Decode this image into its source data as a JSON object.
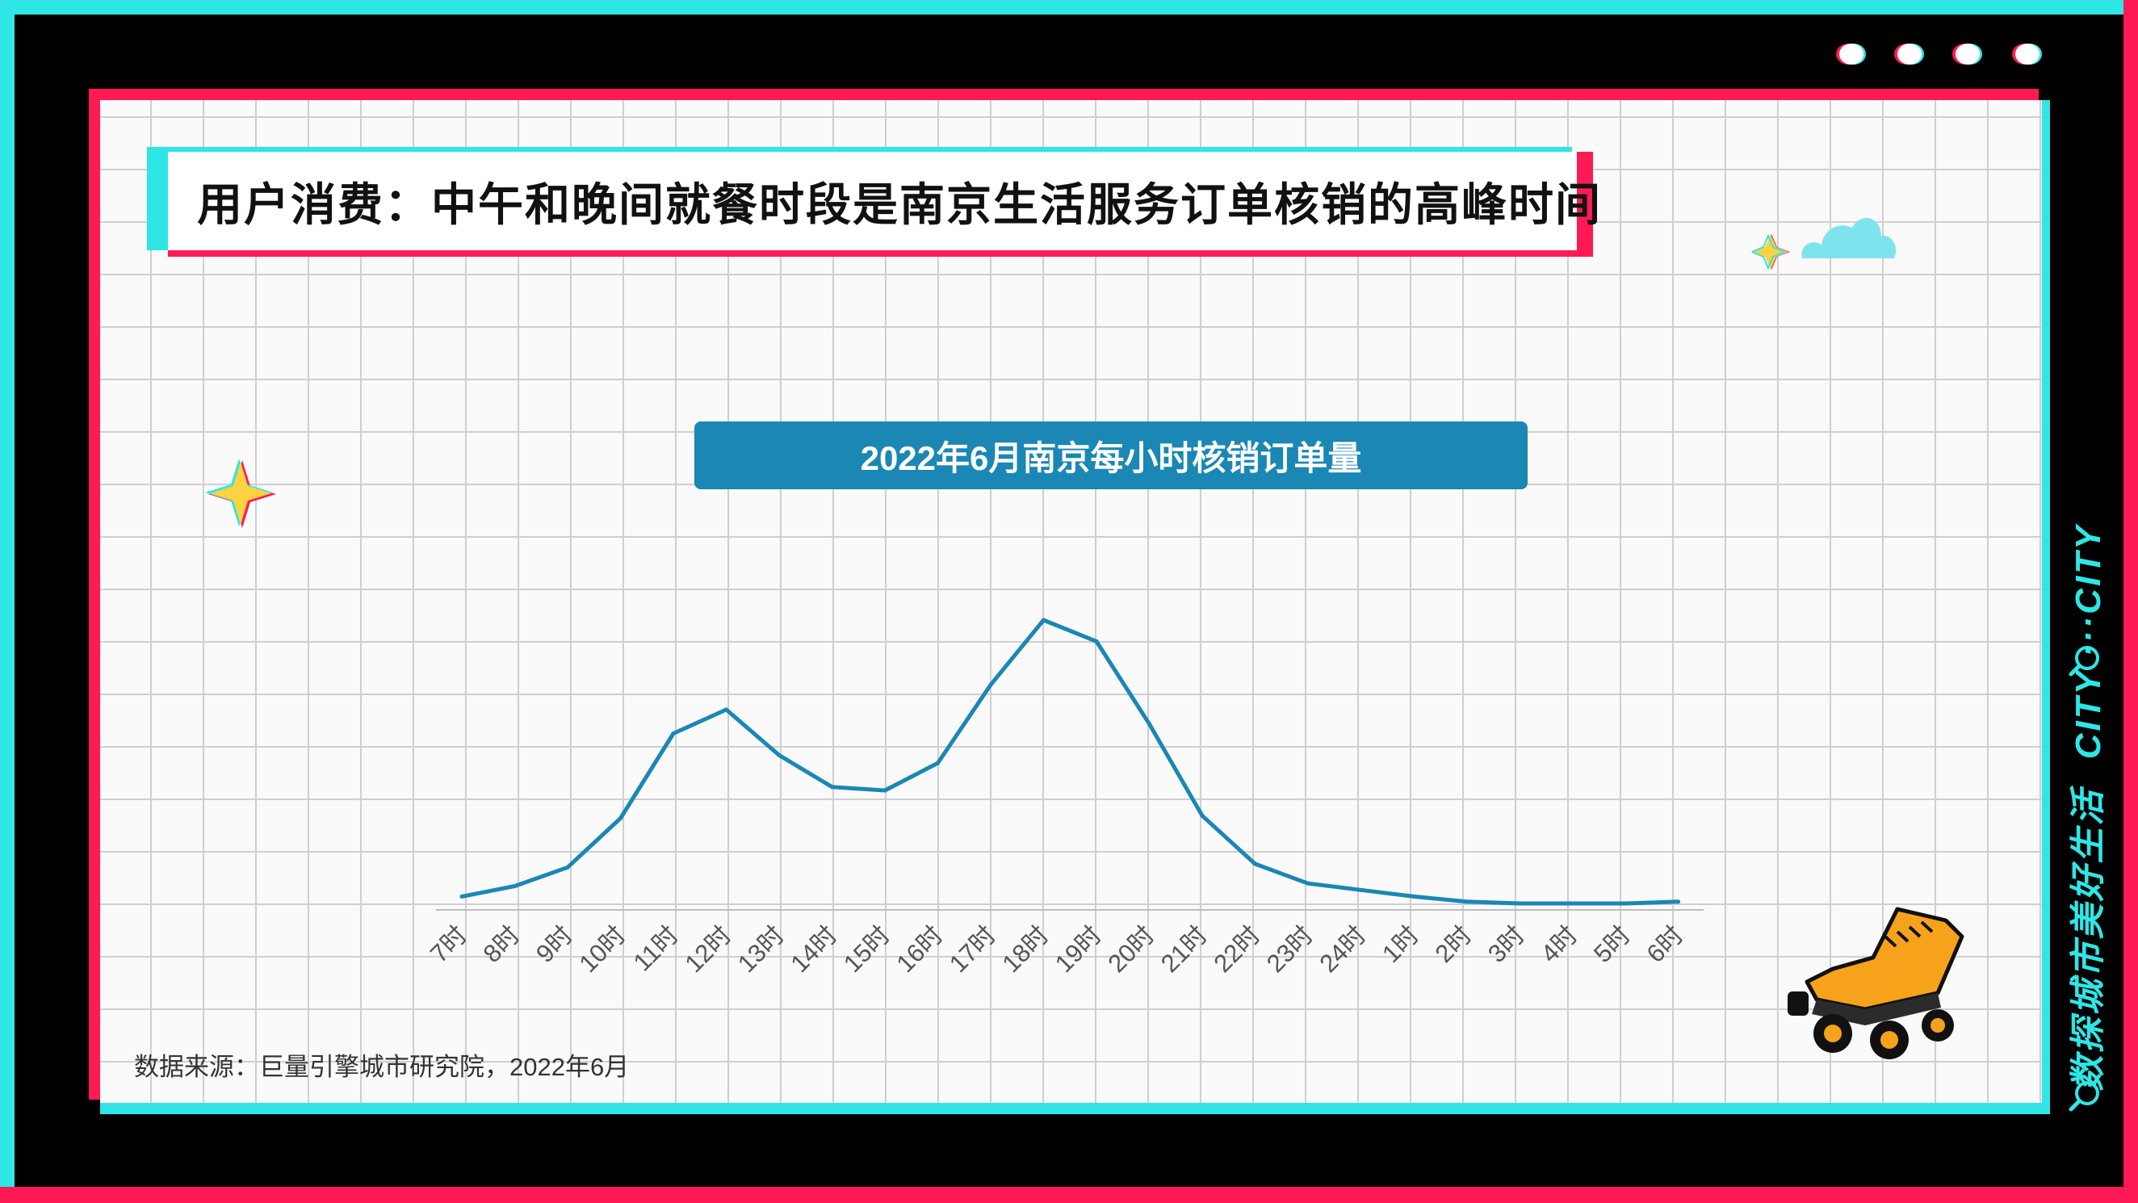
{
  "title": "用户消费：中午和晚间就餐时段是南京生活服务订单核销的高峰时间",
  "banner": "2022年6月南京每小时核销订单量",
  "source": "数据来源：巨量引擎城市研究院，2022年6月",
  "side": {
    "text1": "数探城市美好生活",
    "text2": "CITY ···CITY"
  },
  "colors": {
    "cyan": "#2ee6e6",
    "red": "#ff1a55",
    "line": "#1a87b4"
  },
  "chart_data": {
    "type": "line",
    "title": "2022年6月南京每小时核销订单量",
    "categories": [
      "7时",
      "8时",
      "9时",
      "10时",
      "11时",
      "12时",
      "13时",
      "14时",
      "15时",
      "16时",
      "17时",
      "18时",
      "19时",
      "20时",
      "21时",
      "22时",
      "23时",
      "24时",
      "1时",
      "2时",
      "3时",
      "4时",
      "5时",
      "6时"
    ],
    "series": [
      {
        "values": [
          1.2,
          3.6,
          7.9,
          19.2,
          38.7,
          44.2,
          33.7,
          26.4,
          25.6,
          31.9,
          49.9,
          64.8,
          59.9,
          40.9,
          19.8,
          8.7,
          4.2,
          2.7,
          1.2,
          0,
          -0.4,
          -0.4,
          -0.4,
          0
        ]
      }
    ],
    "ylim": [
      -3,
      70
    ],
    "grid": true,
    "legend": "none"
  }
}
